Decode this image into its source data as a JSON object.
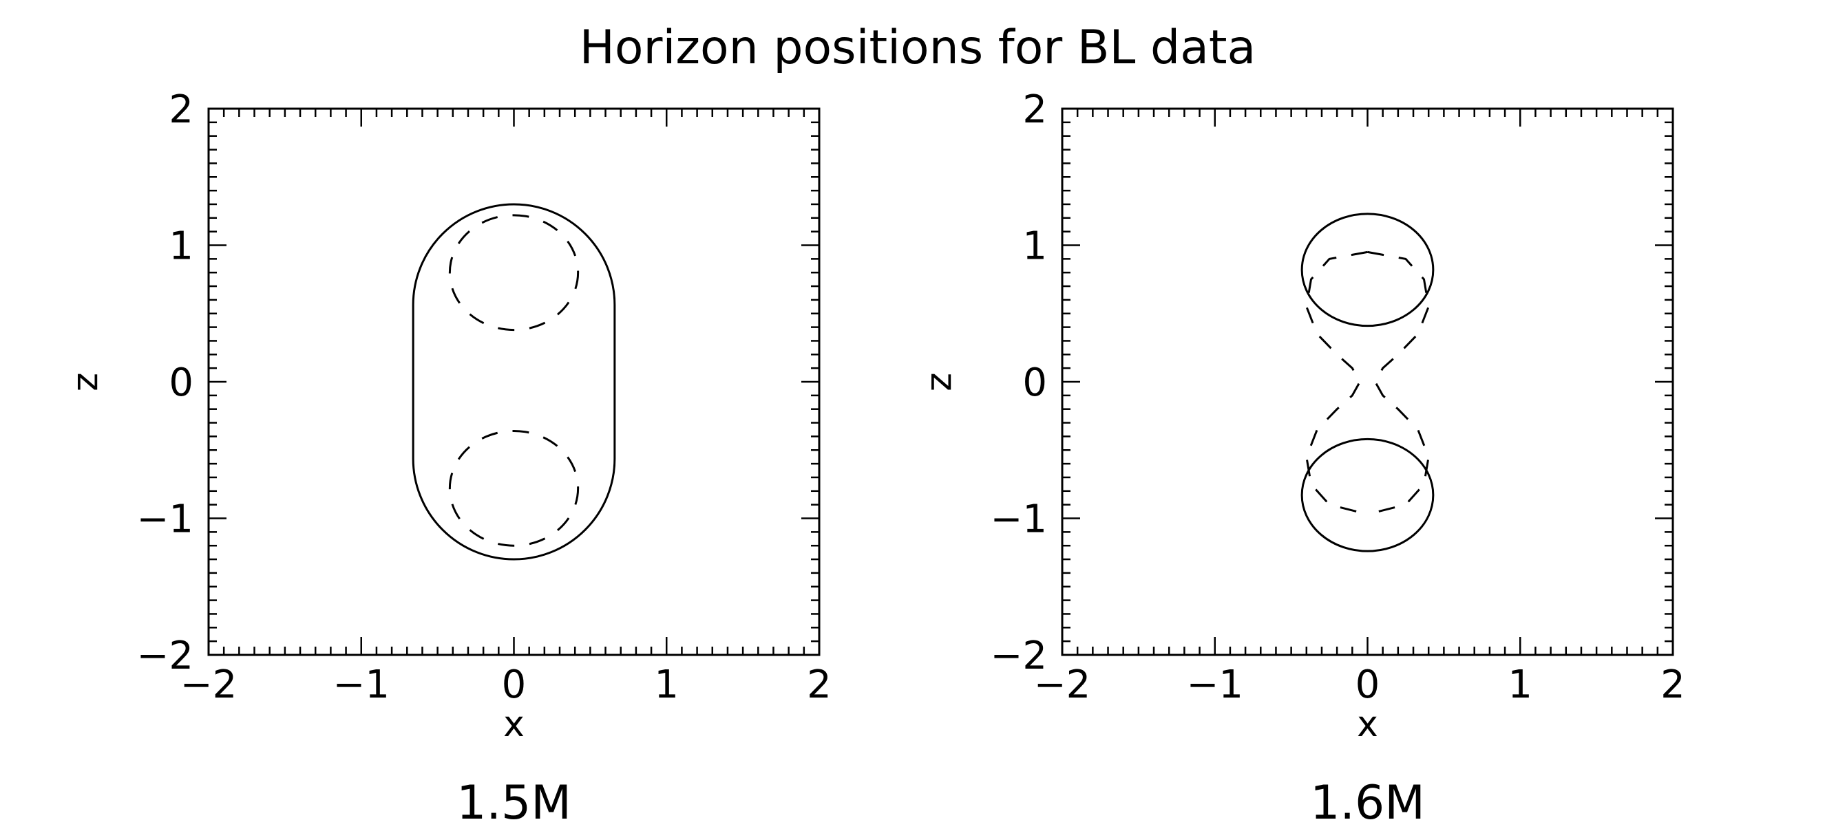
{
  "title": "Horizon positions for BL data",
  "chart_data": [
    {
      "type": "line",
      "caption": "1.5M",
      "xlabel": "x",
      "ylabel": "z",
      "xlim": [
        -2,
        2
      ],
      "ylim": [
        -2,
        2
      ],
      "xticks": [
        -2,
        -1,
        0,
        1,
        2
      ],
      "yticks": [
        -2,
        -1,
        0,
        1,
        2
      ],
      "xtick_labels": [
        "−2",
        "−1",
        "0",
        "1",
        "2"
      ],
      "ytick_labels": [
        "−2",
        "−1",
        "0",
        "1",
        "2"
      ],
      "grid": false,
      "series": [
        {
          "style": "solid",
          "shape": "stadium",
          "x": [
            -0.66,
            0.66
          ],
          "z": [
            -1.3,
            1.3
          ]
        },
        {
          "style": "dashed",
          "shape": "ellipse",
          "center": [
            0,
            0.8
          ],
          "semi_axes": [
            0.42,
            0.42
          ]
        },
        {
          "style": "dashed",
          "shape": "ellipse",
          "center": [
            0,
            -0.78
          ],
          "semi_axes": [
            0.42,
            0.42
          ]
        }
      ]
    },
    {
      "type": "line",
      "caption": "1.6M",
      "xlabel": "x",
      "ylabel": "z",
      "xlim": [
        -2,
        2
      ],
      "ylim": [
        -2,
        2
      ],
      "xticks": [
        -2,
        -1,
        0,
        1,
        2
      ],
      "yticks": [
        -2,
        -1,
        0,
        1,
        2
      ],
      "xtick_labels": [
        "−2",
        "−1",
        "0",
        "1",
        "2"
      ],
      "ytick_labels": [
        "−2",
        "−1",
        "0",
        "1",
        "2"
      ],
      "grid": false,
      "series": [
        {
          "style": "solid",
          "shape": "ellipse",
          "center": [
            0,
            0.82
          ],
          "semi_axes": [
            0.43,
            0.41
          ]
        },
        {
          "style": "solid",
          "shape": "ellipse",
          "center": [
            0,
            -0.83
          ],
          "semi_axes": [
            0.43,
            0.41
          ]
        },
        {
          "style": "dashed",
          "shape": "hourglass",
          "x": [
            0.0,
            0.25,
            0.37,
            0.4,
            0.33,
            0.2,
            0.1,
            0.05,
            0.1,
            0.2,
            0.33,
            0.4,
            0.37,
            0.25,
            0.0
          ],
          "z": [
            0.95,
            0.9,
            0.75,
            0.55,
            0.35,
            0.2,
            0.1,
            0.0,
            -0.1,
            -0.2,
            -0.35,
            -0.55,
            -0.75,
            -0.9,
            -0.97
          ]
        }
      ]
    }
  ]
}
